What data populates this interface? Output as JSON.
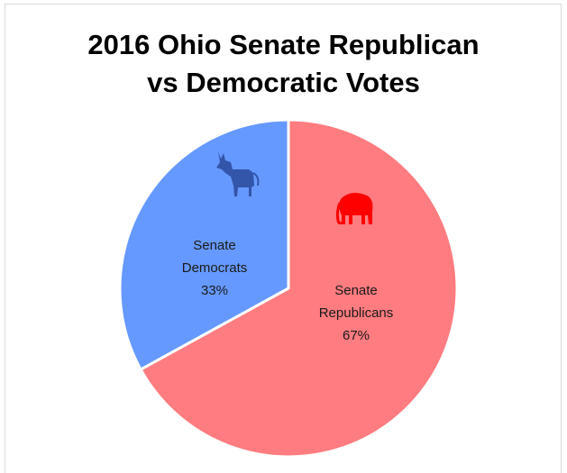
{
  "chart_data": {
    "type": "pie",
    "title_lines": [
      "2016 Ohio Senate Republican",
      "vs Democratic Votes"
    ],
    "slices": [
      {
        "name": "Senate Republicans",
        "value": 67,
        "label_lines": [
          "Senate",
          "Republicans",
          "67%"
        ],
        "color": "#ff7c80",
        "icon": "elephant-icon",
        "icon_color": "#ff0000"
      },
      {
        "name": "Senate Democrats",
        "value": 33,
        "label_lines": [
          "Senate",
          "Democrats",
          "33%"
        ],
        "color": "#6699ff",
        "icon": "donkey-icon",
        "icon_color": "#3355aa"
      }
    ],
    "legend": "none"
  }
}
